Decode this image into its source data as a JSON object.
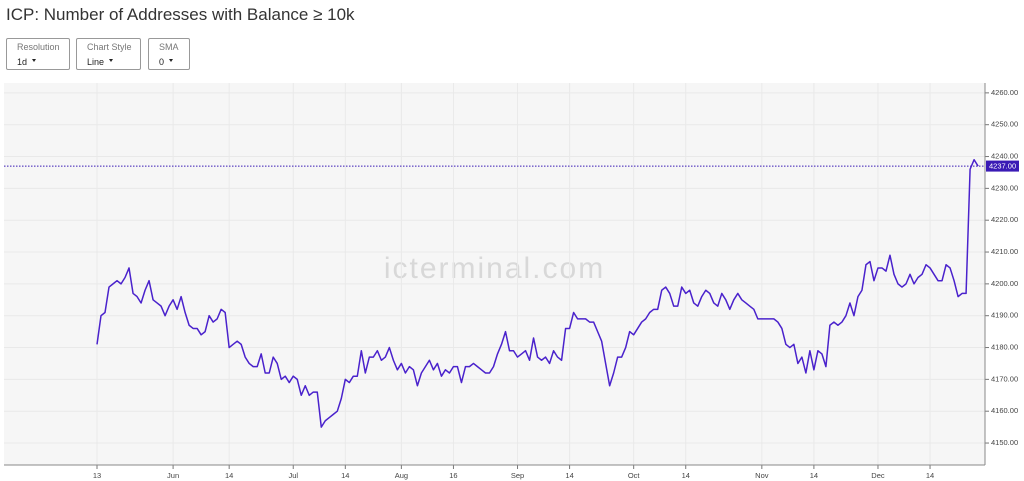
{
  "chart_data": {
    "type": "line",
    "title": "ICP: Number of Addresses with Balance ≥ 10k",
    "controls": [
      {
        "label": "Resolution",
        "value": "1d"
      },
      {
        "label": "Chart Style",
        "value": "Line"
      },
      {
        "label": "SMA",
        "value": "0"
      }
    ],
    "watermark": "icterminal.com",
    "categories": [
      "13",
      null,
      null,
      null,
      null,
      null,
      null,
      null,
      null,
      null,
      null,
      null,
      null,
      null,
      null,
      null,
      null,
      null,
      null,
      "Jun",
      null,
      null,
      null,
      null,
      null,
      null,
      null,
      null,
      null,
      null,
      null,
      null,
      null,
      "14",
      null,
      null,
      null,
      null,
      null,
      null,
      null,
      null,
      null,
      null,
      null,
      null,
      null,
      null,
      null,
      "Jul",
      null,
      null,
      null,
      null,
      null,
      null,
      null,
      null,
      null,
      null,
      null,
      null,
      "14",
      null,
      null,
      null,
      null,
      null,
      null,
      null,
      null,
      null,
      null,
      null,
      null,
      null,
      "Aug",
      null,
      null,
      null,
      null,
      null,
      null,
      null,
      null,
      null,
      null,
      null,
      null,
      "16",
      null,
      null,
      null,
      null,
      null,
      null,
      null,
      null,
      null,
      null,
      null,
      null,
      null,
      null,
      null,
      "Sep",
      null,
      null,
      null,
      null,
      null,
      null,
      null,
      null,
      null,
      null,
      null,
      null,
      "14",
      null,
      null,
      null,
      null,
      null,
      null,
      null,
      null,
      null,
      null,
      null,
      null,
      null,
      null,
      null,
      "Oct",
      null,
      null,
      null,
      null,
      null,
      null,
      null,
      null,
      null,
      null,
      null,
      null,
      "14",
      null,
      null,
      null,
      null,
      null,
      null,
      null,
      null,
      null,
      null,
      null,
      null,
      null,
      null,
      null,
      null,
      null,
      null,
      "Nov",
      null,
      null,
      null,
      null,
      null,
      null,
      null,
      null,
      null,
      null,
      null,
      null,
      "14",
      null,
      null,
      null,
      null,
      null,
      null,
      null,
      null,
      null,
      null,
      null,
      null,
      null,
      null,
      null,
      "Dec",
      null,
      null,
      null,
      null,
      null,
      null,
      null,
      null,
      null,
      null,
      null,
      null,
      "14",
      null,
      null,
      null,
      null,
      null,
      null,
      null,
      null,
      null,
      null,
      null,
      null
    ],
    "series": [
      {
        "name": "Addresses",
        "color": "#4a22cc",
        "values": [
          4181,
          4190,
          4191,
          4199,
          4200,
          4201,
          4200,
          4202,
          4205,
          4197,
          4196,
          4194,
          4198,
          4201,
          4195,
          4194,
          4193,
          4190,
          4193,
          4195,
          4192,
          4196,
          4191,
          4187,
          4186,
          4186,
          4184,
          4185,
          4190,
          4188,
          4189,
          4192,
          4191,
          4180,
          4181,
          4182,
          4181,
          4177,
          4175,
          4174,
          4174,
          4178,
          4172,
          4172,
          4177,
          4175,
          4170,
          4171,
          4169,
          4171,
          4170,
          4165,
          4168,
          4165,
          4166,
          4166,
          4155,
          4157,
          4158,
          4159,
          4160,
          4164,
          4170,
          4169,
          4171,
          4171,
          4179,
          4172,
          4177,
          4177,
          4179,
          4176,
          4177,
          4180,
          4176,
          4173,
          4175,
          4172,
          4174,
          4173,
          4168,
          4172,
          4174,
          4176,
          4173,
          4175,
          4171,
          4173,
          4172,
          4174,
          4174,
          4169,
          4174,
          4174,
          4175,
          4174,
          4173,
          4172,
          4172,
          4174,
          4178,
          4181,
          4185,
          4179,
          4179,
          4177,
          4178,
          4179,
          4176,
          4183,
          4177,
          4176,
          4177,
          4175,
          4179,
          4177,
          4176,
          4186,
          4186,
          4191,
          4189,
          4189,
          4189,
          4188,
          4188,
          4185,
          4182,
          4175,
          4168,
          4172,
          4177,
          4177,
          4180,
          4185,
          4184,
          4186,
          4188,
          4189,
          4191,
          4192,
          4192,
          4198,
          4199,
          4197,
          4193,
          4193,
          4199,
          4197,
          4198,
          4194,
          4193,
          4196,
          4198,
          4197,
          4194,
          4193,
          4197,
          4195,
          4192,
          4195,
          4197,
          4195,
          4194,
          4193,
          4192,
          4189,
          4189,
          4189,
          4189,
          4189,
          4188,
          4186,
          4181,
          4180,
          4181,
          4175,
          4177,
          4172,
          4179,
          4173,
          4179,
          4178,
          4174,
          4187,
          4188,
          4187,
          4188,
          4190,
          4194,
          4190,
          4196,
          4198,
          4206,
          4207,
          4201,
          4205,
          4205,
          4204,
          4209,
          4203,
          4200,
          4199,
          4200,
          4203,
          4200,
          4202,
          4203,
          4206,
          4205,
          4203,
          4201,
          4201,
          4206,
          4205,
          4201,
          4196,
          4197,
          4197,
          4236,
          4239,
          4237
        ]
      }
    ],
    "price_line": {
      "value": 4237,
      "label": "4237.00",
      "color": "#3a1bb5"
    },
    "ylim": [
      4143.1,
      4263.1
    ],
    "yticks": [
      {
        "value": 4150,
        "label": "4150.00"
      },
      {
        "value": 4160,
        "label": "4160.00"
      },
      {
        "value": 4170,
        "label": "4170.00"
      },
      {
        "value": 4180,
        "label": "4180.00"
      },
      {
        "value": 4190,
        "label": "4190.00"
      },
      {
        "value": 4200,
        "label": "4200.00"
      },
      {
        "value": 4210,
        "label": "4210.00"
      },
      {
        "value": 4220,
        "label": "4220.00"
      },
      {
        "value": 4230,
        "label": "4230.00"
      },
      {
        "value": 4240,
        "label": "4240.00"
      },
      {
        "value": 4250,
        "label": "4250.00"
      },
      {
        "value": 4260,
        "label": "4260.00"
      }
    ],
    "grid": true
  }
}
